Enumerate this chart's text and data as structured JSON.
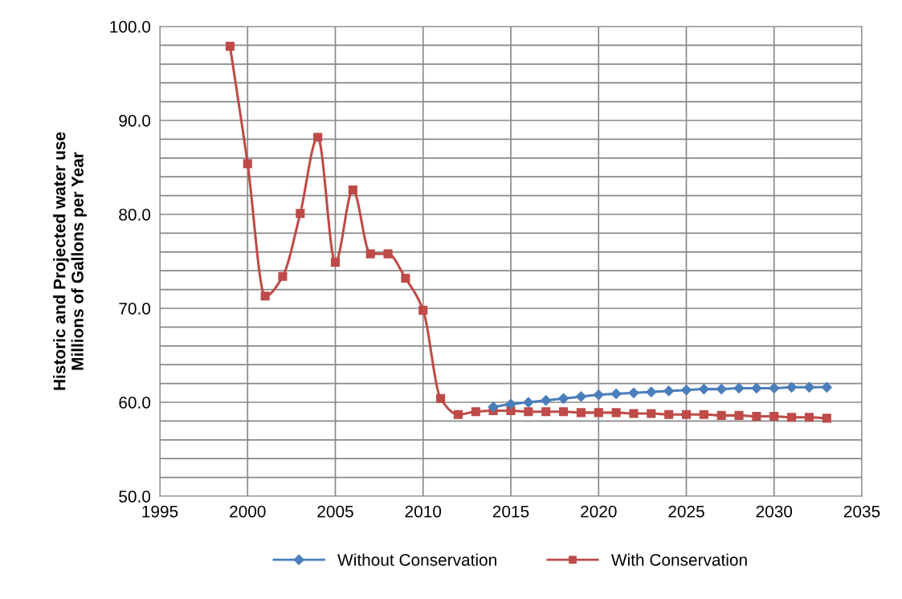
{
  "chart_data": {
    "type": "line",
    "ylabel": "Historic and Projected water use\nMillions of Gallons per Year",
    "x": [
      1999,
      2000,
      2001,
      2002,
      2003,
      2004,
      2005,
      2006,
      2007,
      2008,
      2009,
      2010,
      2011,
      2012,
      2013,
      2014,
      2015,
      2016,
      2017,
      2018,
      2019,
      2020,
      2021,
      2022,
      2023,
      2024,
      2025,
      2026,
      2027,
      2028,
      2029,
      2030,
      2031,
      2032,
      2033
    ],
    "series": [
      {
        "name": "Without Conservation",
        "color": "#4a7ebb",
        "marker": "diamond",
        "values": [
          null,
          null,
          null,
          null,
          null,
          null,
          null,
          null,
          null,
          null,
          null,
          null,
          null,
          null,
          null,
          59.5,
          59.8,
          60.0,
          60.2,
          60.4,
          60.6,
          60.8,
          60.9,
          61.0,
          61.1,
          61.2,
          61.3,
          61.4,
          61.4,
          61.5,
          61.5,
          61.5,
          61.6,
          61.6,
          61.6
        ]
      },
      {
        "name": "With Conservation",
        "color": "#be4b48",
        "marker": "square",
        "values": [
          97.9,
          85.4,
          71.3,
          73.4,
          80.1,
          88.2,
          74.9,
          82.6,
          75.8,
          75.8,
          73.2,
          69.8,
          60.4,
          58.7,
          59.0,
          59.1,
          59.1,
          59.0,
          59.0,
          59.0,
          58.9,
          58.9,
          58.9,
          58.8,
          58.8,
          58.7,
          58.7,
          58.7,
          58.6,
          58.6,
          58.5,
          58.5,
          58.4,
          58.4,
          58.3
        ]
      }
    ],
    "xlim": [
      1995,
      2035
    ],
    "xticks": [
      1995,
      2000,
      2005,
      2010,
      2015,
      2020,
      2025,
      2030,
      2035
    ],
    "ylim": [
      50,
      100
    ],
    "yticks": [
      {
        "value": 50,
        "label": "50.0"
      },
      {
        "value": 52,
        "label": null
      },
      {
        "value": 54,
        "label": null
      },
      {
        "value": 56,
        "label": null
      },
      {
        "value": 58,
        "label": null
      },
      {
        "value": 60,
        "label": "60.0"
      },
      {
        "value": 62,
        "label": null
      },
      {
        "value": 64,
        "label": null
      },
      {
        "value": 66,
        "label": null
      },
      {
        "value": 68,
        "label": null
      },
      {
        "value": 70,
        "label": "70.0"
      },
      {
        "value": 72,
        "label": null
      },
      {
        "value": 74,
        "label": null
      },
      {
        "value": 76,
        "label": null
      },
      {
        "value": 78,
        "label": null
      },
      {
        "value": 80,
        "label": "80.0"
      },
      {
        "value": 82,
        "label": null
      },
      {
        "value": 84,
        "label": null
      },
      {
        "value": 86,
        "label": null
      },
      {
        "value": 88,
        "label": null
      },
      {
        "value": 90,
        "label": "90.0"
      },
      {
        "value": 92,
        "label": null
      },
      {
        "value": 94,
        "label": null
      },
      {
        "value": 96,
        "label": null
      },
      {
        "value": 98,
        "label": null
      },
      {
        "value": 100,
        "label": "100.0"
      }
    ],
    "grid": true,
    "legend": "bottom",
    "line_style": "solid"
  }
}
